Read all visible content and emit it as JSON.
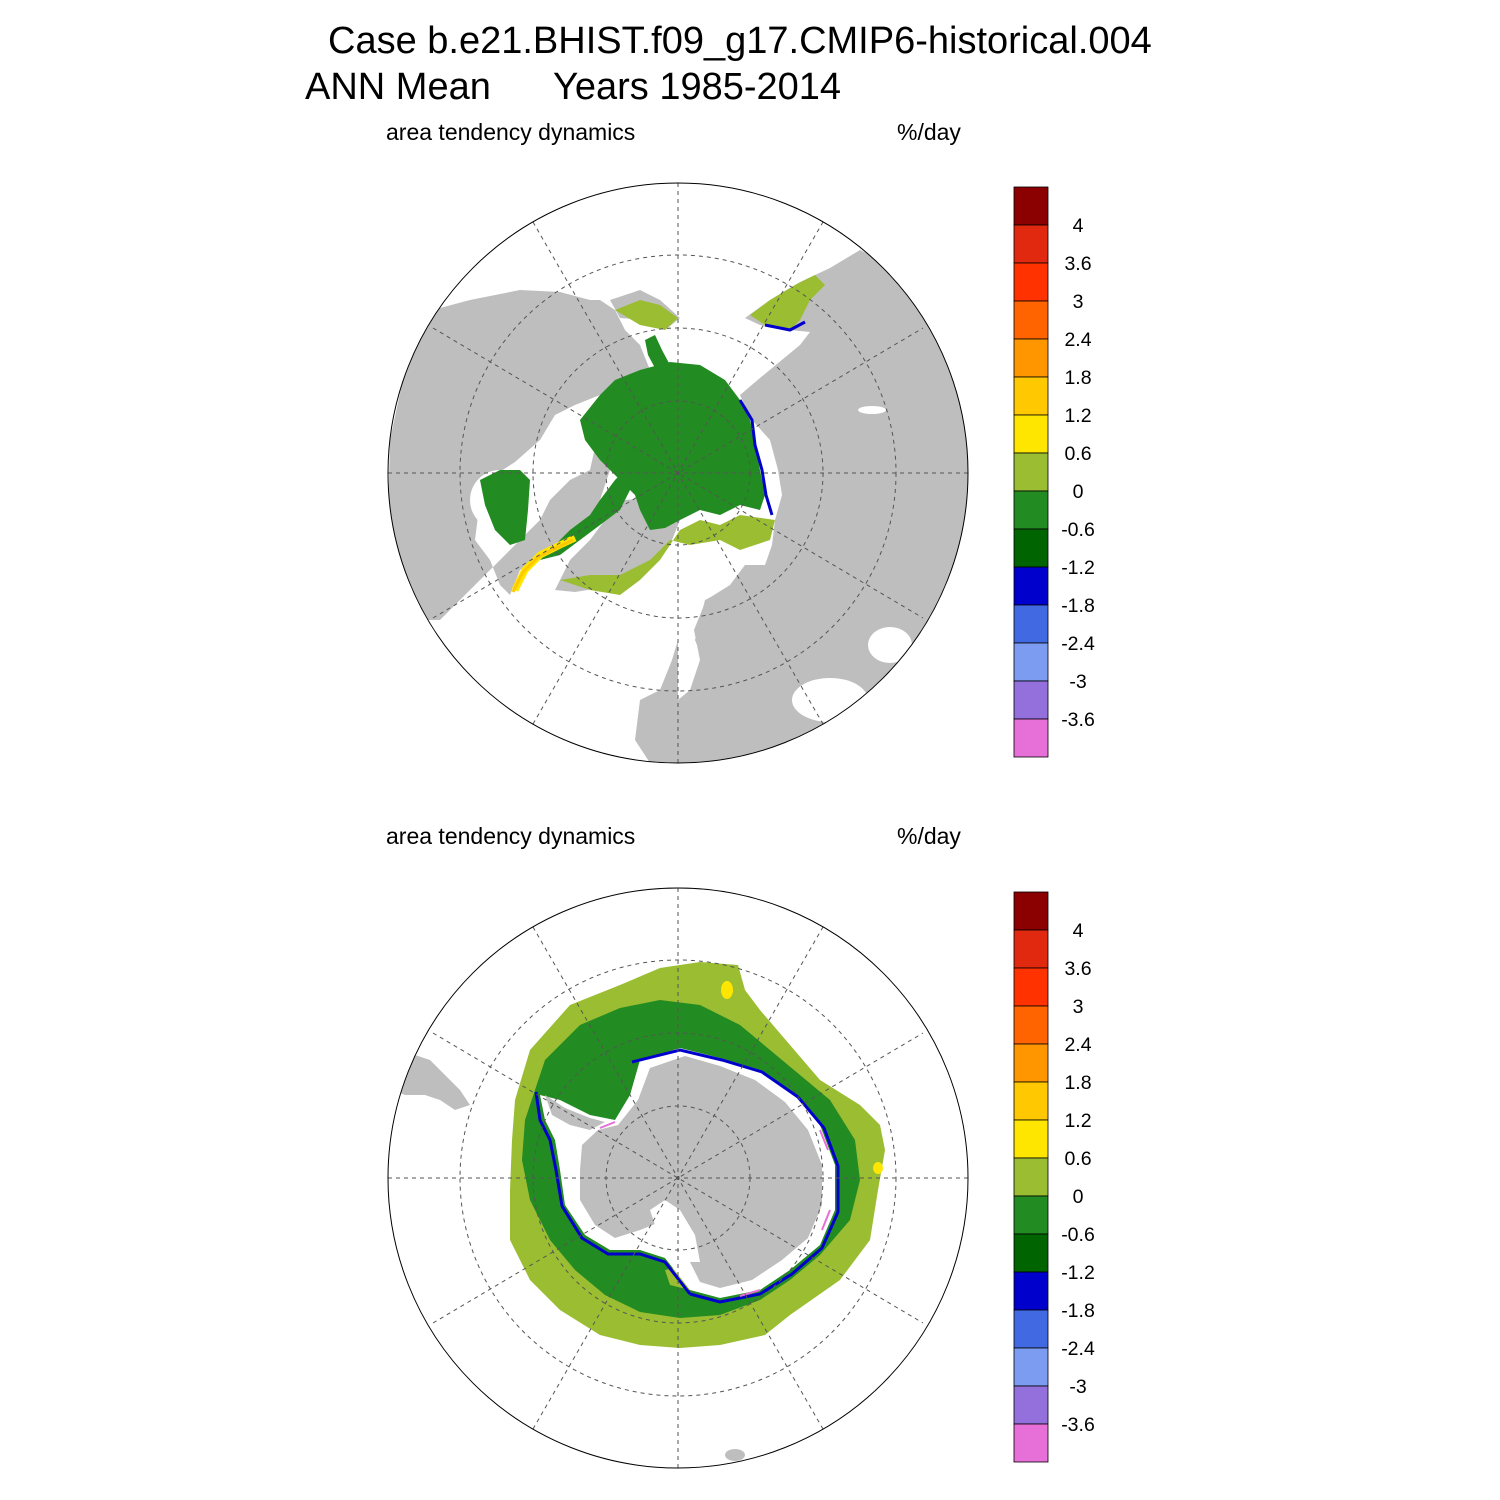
{
  "figure": {
    "title_line1": "Case b.e21.BHIST.f09_g17.CMIP6-historical.004",
    "title_line2_left": "ANN Mean",
    "title_line2_right": "Years 1985-2014"
  },
  "panels": [
    {
      "name": "northern-hemisphere",
      "left_label": "area tendency dynamics",
      "right_label": "%/day"
    },
    {
      "name": "southern-hemisphere",
      "left_label": "area tendency dynamics",
      "right_label": "%/day"
    }
  ],
  "colorbar": {
    "labels": [
      "4",
      "3.6",
      "3",
      "2.4",
      "1.8",
      "1.2",
      "0.6",
      "0",
      "-0.6",
      "-1.2",
      "-1.8",
      "-2.4",
      "-3",
      "-3.6"
    ],
    "colors": [
      "#8b0000",
      "#e0290f",
      "#ff3200",
      "#ff6400",
      "#ff9600",
      "#ffc800",
      "#ffe600",
      "#9bbd32",
      "#228b22",
      "#006400",
      "#0000cd",
      "#4169e1",
      "#7b9cf0",
      "#9370db",
      "#e66fd8"
    ]
  },
  "map_colors": {
    "land": "#bebebe",
    "ocean": "#ffffff",
    "ice_interior": "#228b22",
    "ice_edge": "#9bbd32",
    "ice_margin_loss": "#0000cd",
    "ice_margin_gain": "#ffe600",
    "grid": "#555555"
  }
}
